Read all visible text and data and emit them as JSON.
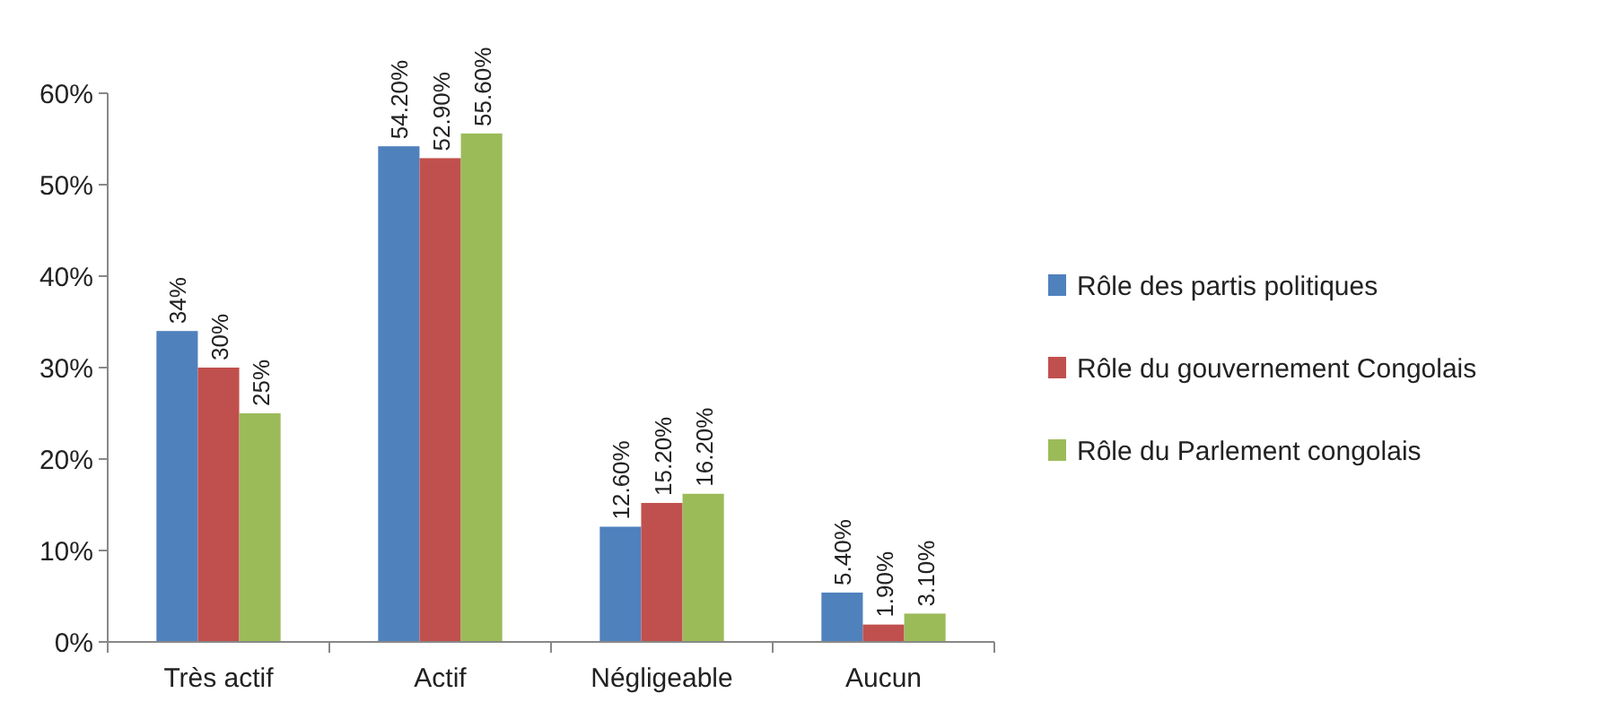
{
  "chart_data": {
    "type": "bar",
    "categories": [
      "Très actif",
      "Actif",
      "Négligeable",
      "Aucun"
    ],
    "series": [
      {
        "name": "Rôle des partis politiques",
        "color": "#4f81bd",
        "values": [
          34,
          54.2,
          12.6,
          5.4
        ],
        "value_labels": [
          "34%",
          "54.20%",
          "12.60%",
          "5.40%"
        ]
      },
      {
        "name": "Rôle du gouvernement Congolais",
        "color": "#c0504d",
        "values": [
          30,
          52.9,
          15.2,
          1.9
        ],
        "value_labels": [
          "30%",
          "52.90%",
          "15.20%",
          "1.90%"
        ]
      },
      {
        "name": "Rôle du Parlement congolais",
        "color": "#9bbb59",
        "values": [
          25,
          55.6,
          16.2,
          3.1
        ],
        "value_labels": [
          "25%",
          "55.60%",
          "16.20%",
          "3.10%"
        ]
      }
    ],
    "ylim": [
      0,
      60
    ],
    "yticks": [
      {
        "value": 0,
        "label": "0%"
      },
      {
        "value": 10,
        "label": "10%"
      },
      {
        "value": 20,
        "label": "20%"
      },
      {
        "value": 30,
        "label": "30%"
      },
      {
        "value": 40,
        "label": "40%"
      },
      {
        "value": 50,
        "label": "50%"
      },
      {
        "value": 60,
        "label": "60%"
      }
    ],
    "grid": false,
    "legend": "right"
  }
}
